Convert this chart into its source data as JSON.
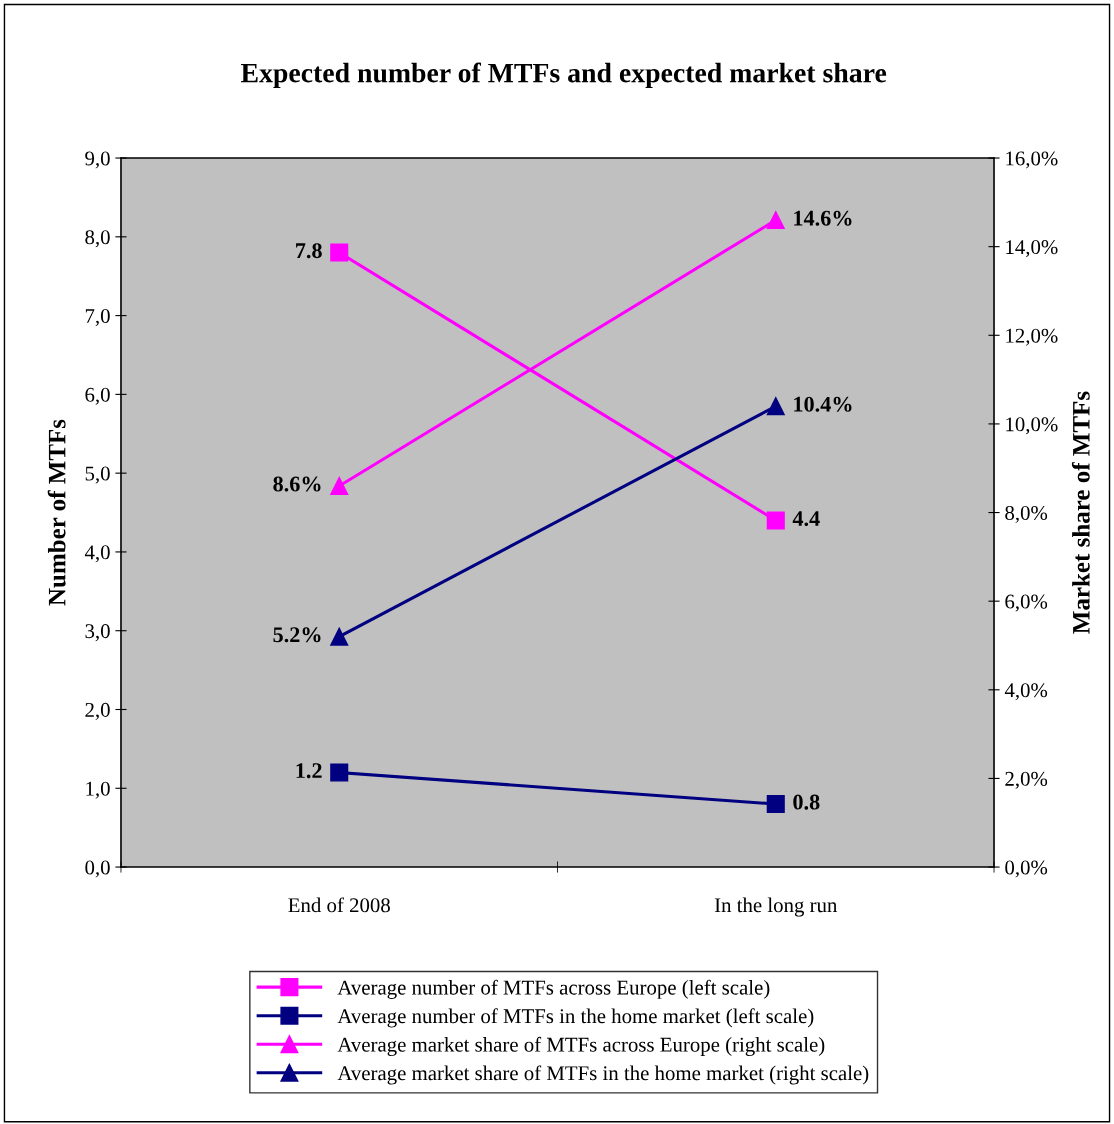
{
  "chart_data": {
    "type": "line",
    "title": "Expected number of MTFs and expected market share",
    "categories": [
      "End of 2008",
      "In the long run"
    ],
    "ylabel": "Number of MTFs",
    "y2label": "Market share of MTFs",
    "ylim": [
      0,
      9
    ],
    "yticks": [
      {
        "value": 0,
        "label": "0,0"
      },
      {
        "value": 1,
        "label": "1,0"
      },
      {
        "value": 2,
        "label": "2,0"
      },
      {
        "value": 3,
        "label": "3,0"
      },
      {
        "value": 4,
        "label": "4,0"
      },
      {
        "value": 5,
        "label": "5,0"
      },
      {
        "value": 6,
        "label": "6,0"
      },
      {
        "value": 7,
        "label": "7,0"
      },
      {
        "value": 8,
        "label": "8,0"
      },
      {
        "value": 9,
        "label": "9,0"
      }
    ],
    "y2lim": [
      0,
      16
    ],
    "y2ticks": [
      {
        "value": 0,
        "label": "0,0%"
      },
      {
        "value": 2,
        "label": "2,0%"
      },
      {
        "value": 4,
        "label": "4,0%"
      },
      {
        "value": 6,
        "label": "6,0%"
      },
      {
        "value": 8,
        "label": "8,0%"
      },
      {
        "value": 10,
        "label": "10,0%"
      },
      {
        "value": 12,
        "label": "12,0%"
      },
      {
        "value": 14,
        "label": "14,0%"
      },
      {
        "value": 16,
        "label": "16,0%"
      }
    ],
    "series": [
      {
        "name": "Average number of MTFs across Europe (left scale)",
        "color": "#ff00ff",
        "values": [
          7.8,
          4.4
        ],
        "value_labels": [
          "7.8",
          "4.4"
        ],
        "marker": "square"
      },
      {
        "name": "Average number of MTFs in the home market (left scale)",
        "color": "#000080",
        "values": [
          1.2,
          0.8
        ],
        "value_labels": [
          "1.2",
          "0.8"
        ],
        "marker": "square"
      },
      {
        "name": "Average market share of MTFs across Europe (right scale)",
        "color": "#ff00ff",
        "values": [
          8.6,
          14.6
        ],
        "value_labels": [
          "8.6%",
          "14.6%"
        ],
        "marker": "triangle",
        "axis": "y2"
      },
      {
        "name": "Average market share of MTFs in the home market (right scale)",
        "color": "#000080",
        "values": [
          5.2,
          10.4
        ],
        "value_labels": [
          "5.2%",
          "10.4%"
        ],
        "marker": "triangle",
        "axis": "y2"
      }
    ],
    "grid": false,
    "legend": "bottom",
    "line_style": "solid"
  }
}
